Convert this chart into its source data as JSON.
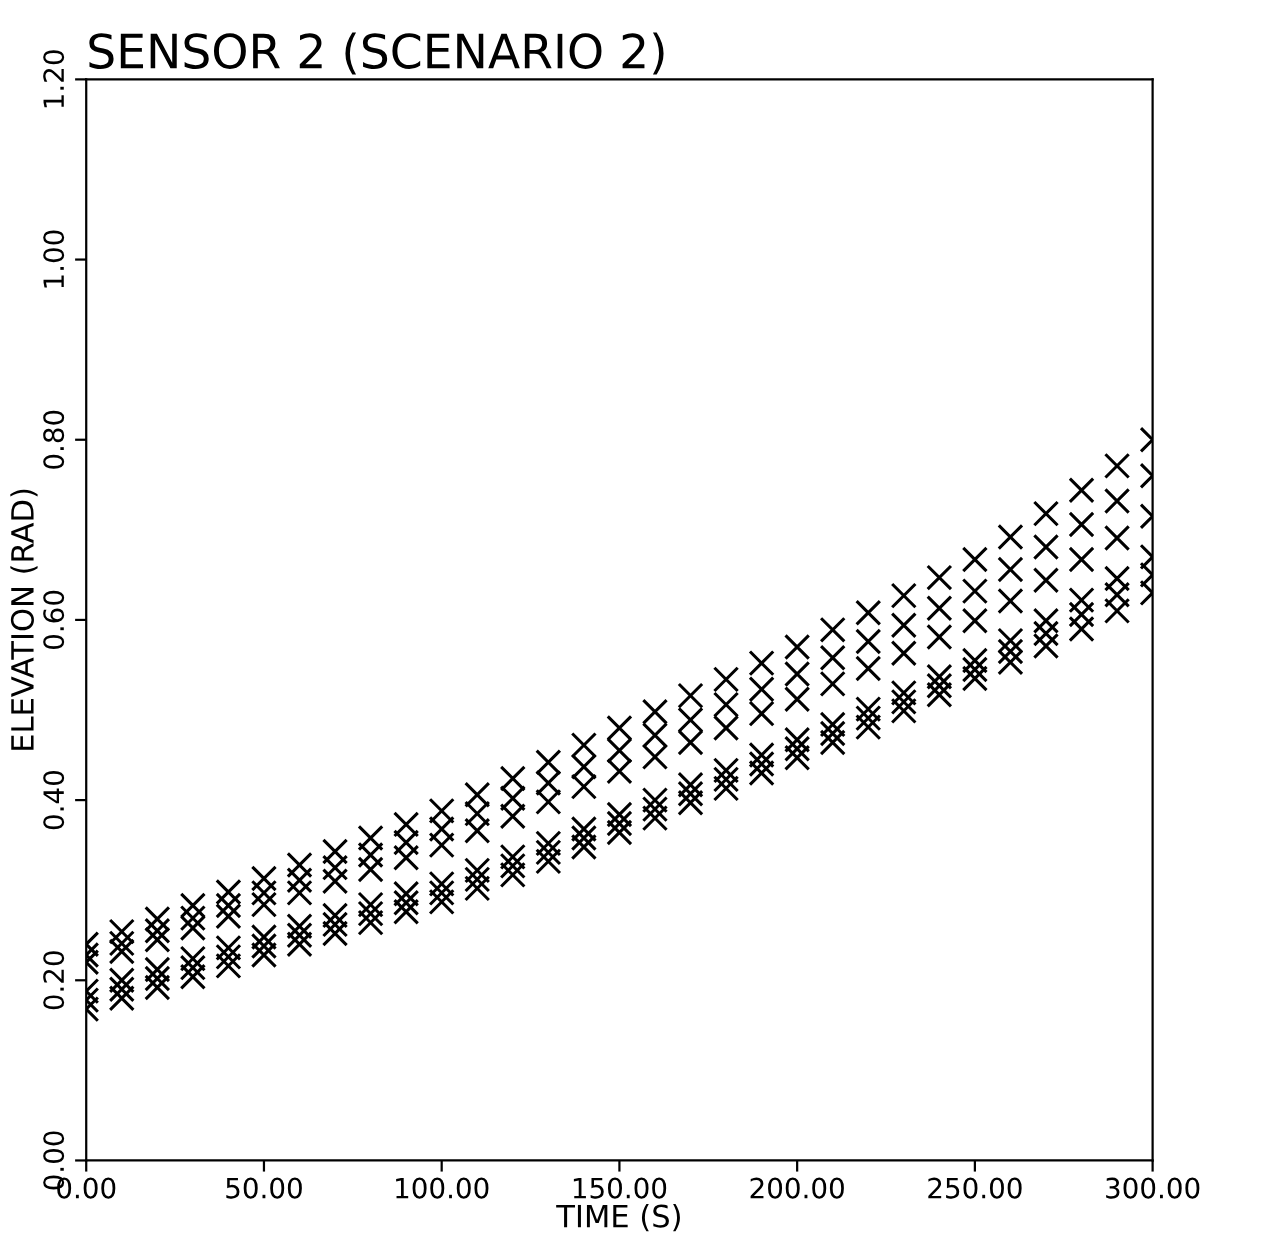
{
  "chart_data": {
    "type": "scatter",
    "title": "SENSOR 2 (SCENARIO 2)",
    "xlabel": "TIME (S)",
    "ylabel": "ELEVATION (RAD)",
    "x": [
      0,
      10,
      20,
      30,
      40,
      50,
      60,
      70,
      80,
      90,
      100,
      110,
      120,
      130,
      140,
      150,
      160,
      170,
      180,
      190,
      200,
      210,
      220,
      230,
      240,
      250,
      260,
      270,
      280,
      290,
      300
    ],
    "series": [
      {
        "color": "#000000",
        "values": [
          0.24,
          0.254,
          0.268,
          0.283,
          0.298,
          0.313,
          0.328,
          0.343,
          0.358,
          0.373,
          0.388,
          0.406,
          0.424,
          0.442,
          0.461,
          0.48,
          0.498,
          0.516,
          0.534,
          0.552,
          0.57,
          0.589,
          0.608,
          0.627,
          0.647,
          0.667,
          0.692,
          0.718,
          0.744,
          0.771,
          0.8
        ]
      },
      {
        "color": "#000000",
        "values": [
          0.228,
          0.241,
          0.255,
          0.269,
          0.283,
          0.297,
          0.311,
          0.325,
          0.339,
          0.353,
          0.368,
          0.385,
          0.402,
          0.419,
          0.437,
          0.455,
          0.472,
          0.489,
          0.506,
          0.523,
          0.54,
          0.558,
          0.576,
          0.594,
          0.613,
          0.632,
          0.656,
          0.681,
          0.706,
          0.732,
          0.76
        ]
      },
      {
        "color": "#000000",
        "values": [
          0.22,
          0.232,
          0.245,
          0.258,
          0.271,
          0.284,
          0.297,
          0.31,
          0.323,
          0.336,
          0.35,
          0.366,
          0.382,
          0.398,
          0.415,
          0.432,
          0.448,
          0.464,
          0.48,
          0.496,
          0.512,
          0.529,
          0.546,
          0.563,
          0.581,
          0.599,
          0.621,
          0.644,
          0.667,
          0.691,
          0.715
        ]
      },
      {
        "color": "#000000",
        "values": [
          0.188,
          0.2,
          0.212,
          0.224,
          0.236,
          0.248,
          0.26,
          0.272,
          0.284,
          0.296,
          0.307,
          0.322,
          0.337,
          0.352,
          0.368,
          0.384,
          0.4,
          0.417,
          0.433,
          0.45,
          0.467,
          0.484,
          0.501,
          0.519,
          0.537,
          0.555,
          0.577,
          0.599,
          0.622,
          0.646,
          0.67
        ]
      },
      {
        "color": "#000000",
        "values": [
          0.178,
          0.19,
          0.202,
          0.214,
          0.226,
          0.238,
          0.25,
          0.262,
          0.274,
          0.286,
          0.297,
          0.312,
          0.327,
          0.342,
          0.358,
          0.374,
          0.39,
          0.407,
          0.423,
          0.44,
          0.457,
          0.474,
          0.491,
          0.509,
          0.527,
          0.545,
          0.565,
          0.585,
          0.606,
          0.628,
          0.65
        ]
      },
      {
        "color": "#000000",
        "values": [
          0.168,
          0.18,
          0.192,
          0.204,
          0.216,
          0.228,
          0.24,
          0.252,
          0.264,
          0.276,
          0.287,
          0.302,
          0.317,
          0.332,
          0.348,
          0.364,
          0.38,
          0.397,
          0.413,
          0.43,
          0.447,
          0.464,
          0.481,
          0.499,
          0.517,
          0.535,
          0.553,
          0.571,
          0.59,
          0.61,
          0.63
        ]
      }
    ],
    "xlim": [
      0,
      300
    ],
    "ylim": [
      0,
      1.2
    ],
    "xticks": [
      {
        "value": 0,
        "label": "0.00"
      },
      {
        "value": 50,
        "label": "50.00"
      },
      {
        "value": 100,
        "label": "100.00"
      },
      {
        "value": 150,
        "label": "150.00"
      },
      {
        "value": 200,
        "label": "200.00"
      },
      {
        "value": 250,
        "label": "250.00"
      },
      {
        "value": 300,
        "label": "300.00"
      }
    ],
    "yticks": [
      {
        "value": 0,
        "label": "0.00"
      },
      {
        "value": 0.2,
        "label": "0.20"
      },
      {
        "value": 0.4,
        "label": "0.40"
      },
      {
        "value": 0.6,
        "label": "0.60"
      },
      {
        "value": 0.8,
        "label": "0.80"
      },
      {
        "value": 1.0,
        "label": "1.00"
      },
      {
        "value": 1.2,
        "label": "1.20"
      }
    ],
    "marker": "cross",
    "grid": false,
    "legend": false
  }
}
